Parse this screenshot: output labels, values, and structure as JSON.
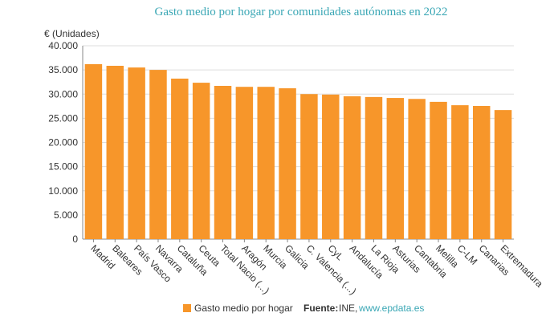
{
  "chart_data": {
    "type": "bar",
    "title": "Gasto medio por hogar por comunidades autónomas en 2022",
    "ylabel": "€ (Unidades)",
    "categories": [
      "Madrid",
      "Baleares",
      "País Vasco",
      "Navarra",
      "Cataluña",
      "Ceuta",
      "Total Nacio (...)",
      "Aragón",
      "Murcia",
      "Galicia",
      "C. Valencia (...)",
      "CyL",
      "Andalucía",
      "La Rioja",
      "Asturias",
      "Cantabria",
      "Melilla",
      "C-LM",
      "Canarias",
      "Extremadura"
    ],
    "series": [
      {
        "name": "Gasto medio por hogar",
        "color": "#f7962a",
        "values": [
          36200,
          35850,
          35500,
          35000,
          33200,
          32350,
          31700,
          31500,
          31500,
          31200,
          30000,
          29900,
          29550,
          29400,
          29200,
          29000,
          28400,
          27700,
          27550,
          26700
        ]
      }
    ],
    "ylim": [
      0,
      40000
    ],
    "yticks": [
      0,
      {
        "value": 5000,
        "label": "5.000"
      },
      {
        "value": 10000,
        "label": "10.000"
      },
      {
        "value": 15000,
        "label": "15.000"
      },
      {
        "value": 20000,
        "label": "20.000"
      },
      {
        "value": 25000,
        "label": "25.000"
      },
      {
        "value": 30000,
        "label": "30.000"
      },
      {
        "value": 35000,
        "label": "35.000"
      },
      {
        "value": 40000,
        "label": "40.000"
      }
    ],
    "grid": true,
    "source_label": "Fuente:",
    "source": "INE,",
    "source_link": "www.epdata.es"
  }
}
